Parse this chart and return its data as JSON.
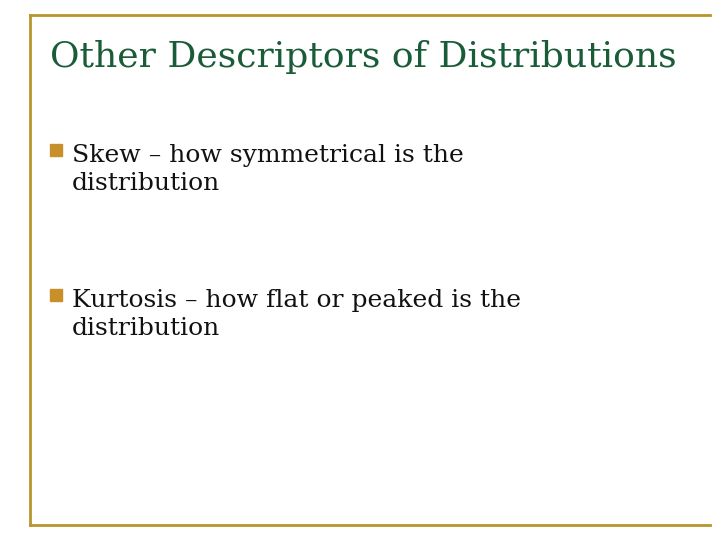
{
  "title": "Other Descriptors of Distributions",
  "title_color": "#1a5c38",
  "title_fontsize": 26,
  "background_color": "#ffffff",
  "border_color": "#b8962e",
  "border_linewidth": 2.0,
  "bullet_color": "#c8902a",
  "text_color": "#111111",
  "text_fontsize": 18,
  "bullets": [
    {
      "line1": "Skew – how symmetrical is the",
      "line2": "distribution"
    },
    {
      "line1": "Kurtosis – how flat or peaked is the",
      "line2": "distribution"
    }
  ]
}
